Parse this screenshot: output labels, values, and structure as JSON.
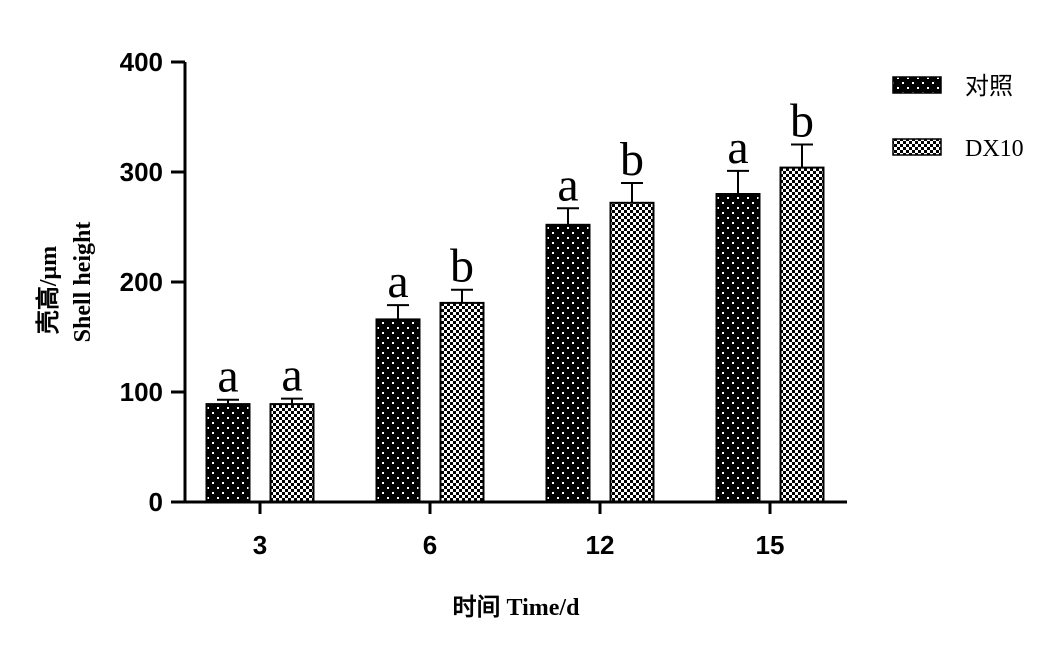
{
  "chart_data": {
    "type": "bar",
    "categories": [
      "3",
      "6",
      "12",
      "15"
    ],
    "series": [
      {
        "name": "对照",
        "values": [
          89,
          166,
          252,
          280
        ],
        "errors": [
          4,
          13,
          15,
          21
        ],
        "labels": [
          "a",
          "a",
          "a",
          "a"
        ],
        "color": "#000000",
        "pattern": "dots"
      },
      {
        "name": "DX10",
        "values": [
          89,
          181,
          272,
          304
        ],
        "errors": [
          5,
          12,
          18,
          21
        ],
        "labels": [
          "a",
          "b",
          "b",
          "b"
        ],
        "color": "#000000",
        "pattern": "checker"
      }
    ],
    "ylim": [
      0,
      400
    ],
    "yticks": [
      0,
      100,
      200,
      300,
      400
    ],
    "xlabel": "时间  Time/d",
    "ylabel_line1": "壳高/μm",
    "ylabel_line2": "Shell height",
    "legend_position": "top-right",
    "grid": false
  }
}
